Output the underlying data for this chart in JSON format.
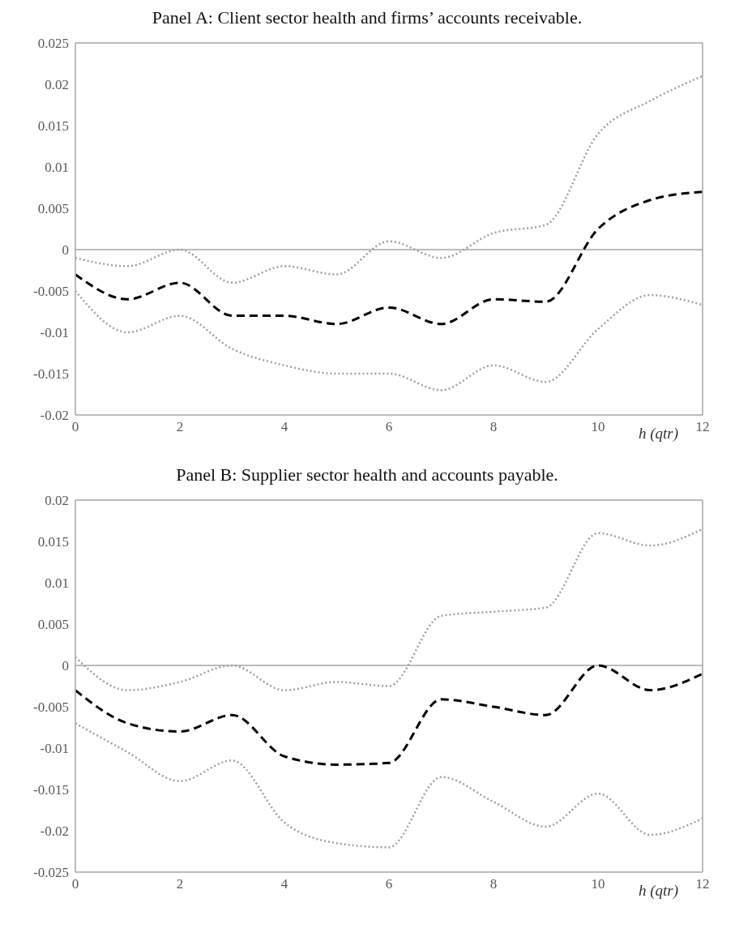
{
  "chart_data": [
    {
      "type": "line",
      "title": "Panel A: Client sector health and firms’ accounts receivable.",
      "xlabel": "h (qtr)",
      "x": [
        0,
        1,
        2,
        3,
        4,
        5,
        6,
        7,
        8,
        9,
        10,
        11,
        12
      ],
      "xlim": [
        0,
        12
      ],
      "xticks": [
        0,
        2,
        4,
        6,
        8,
        10,
        12
      ],
      "ylim": [
        -0.02,
        0.025
      ],
      "yticks": [
        -0.02,
        -0.015,
        -0.01,
        -0.005,
        0,
        0.005,
        0.01,
        0.015,
        0.02,
        0.025
      ],
      "grid": false,
      "marker": "none",
      "ref_lines": [
        {
          "axis": "y",
          "value": 0,
          "color": "#a6a6a6",
          "line_style": "solid"
        }
      ],
      "series": [
        {
          "color": "#000000",
          "line_style": "dashed",
          "values": [
            -0.003,
            -0.006,
            -0.004,
            -0.008,
            -0.008,
            -0.009,
            -0.007,
            -0.009,
            -0.006,
            -0.0063,
            0.0025,
            0.006,
            0.007
          ]
        },
        {
          "color": "#a0a0a0",
          "line_style": "dotted",
          "values": [
            -0.001,
            -0.002,
            0,
            -0.004,
            -0.002,
            -0.003,
            0.001,
            -0.001,
            0.002,
            0.003,
            0.014,
            0.018,
            0.021
          ]
        },
        {
          "color": "#a0a0a0",
          "line_style": "dotted",
          "values": [
            -0.005,
            -0.01,
            -0.008,
            -0.012,
            -0.014,
            -0.015,
            -0.015,
            -0.017,
            -0.014,
            -0.016,
            -0.0096,
            -0.0055,
            -0.0067
          ]
        }
      ]
    },
    {
      "type": "line",
      "title": "Panel B: Supplier sector health and accounts payable.",
      "xlabel": "h (qtr)",
      "x": [
        0,
        1,
        2,
        3,
        4,
        5,
        6,
        7,
        8,
        9,
        10,
        11,
        12
      ],
      "xlim": [
        0,
        12
      ],
      "xticks": [
        0,
        2,
        4,
        6,
        8,
        10,
        12
      ],
      "ylim": [
        -0.025,
        0.02
      ],
      "yticks": [
        -0.025,
        -0.02,
        -0.015,
        -0.01,
        -0.005,
        0,
        0.005,
        0.01,
        0.015,
        0.02
      ],
      "grid": false,
      "marker": "none",
      "ref_lines": [
        {
          "axis": "y",
          "value": 0,
          "color": "#a6a6a6",
          "line_style": "solid"
        }
      ],
      "series": [
        {
          "color": "#000000",
          "line_style": "dashed",
          "values": [
            -0.003,
            -0.007,
            -0.008,
            -0.006,
            -0.011,
            -0.012,
            -0.0118,
            -0.0041,
            -0.005,
            -0.006,
            0,
            -0.003,
            -0.001
          ]
        },
        {
          "color": "#a0a0a0",
          "line_style": "dotted",
          "values": [
            0.001,
            -0.003,
            -0.002,
            0,
            -0.003,
            -0.002,
            -0.0025,
            0.006,
            0.0065,
            0.007,
            0.016,
            0.0145,
            0.0165
          ]
        },
        {
          "color": "#a0a0a0",
          "line_style": "dotted",
          "values": [
            -0.007,
            -0.0105,
            -0.014,
            -0.0115,
            -0.019,
            -0.0215,
            -0.022,
            -0.0135,
            -0.0165,
            -0.0195,
            -0.0155,
            -0.0205,
            -0.0185
          ]
        }
      ]
    }
  ]
}
